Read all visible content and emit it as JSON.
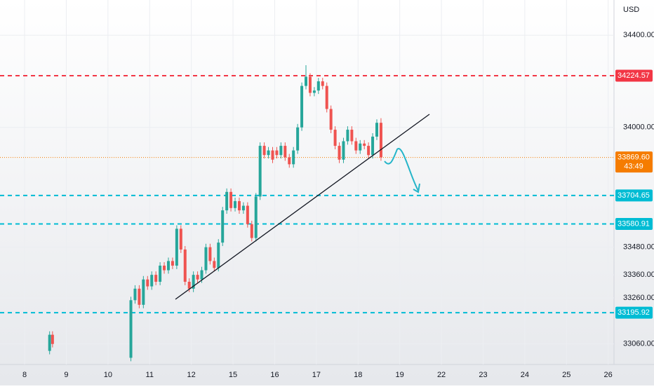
{
  "chart_data": {
    "type": "candlestick",
    "currency": "USD",
    "up_color": "#26a69a",
    "down_color": "#ef5350",
    "xlim": [
      -0.59,
      14.14
    ],
    "xticks": [
      {
        "value": 0,
        "label": "8"
      },
      {
        "value": 1,
        "label": "9"
      },
      {
        "value": 2,
        "label": "10"
      },
      {
        "value": 3,
        "label": "11"
      },
      {
        "value": 4,
        "label": "12"
      },
      {
        "value": 5,
        "label": "15"
      },
      {
        "value": 6,
        "label": "16"
      },
      {
        "value": 7,
        "label": "17"
      },
      {
        "value": 8,
        "label": "18"
      },
      {
        "value": 9,
        "label": "19"
      },
      {
        "value": 10,
        "label": "22"
      },
      {
        "value": 11,
        "label": "23"
      },
      {
        "value": 12,
        "label": "24"
      },
      {
        "value": 13,
        "label": "25"
      },
      {
        "value": 14,
        "label": "26"
      }
    ],
    "ylim": [
      32971,
      34553
    ],
    "yticks": [
      {
        "value": 33060,
        "label": "33060.00"
      },
      {
        "value": 33260,
        "label": "33260.00"
      },
      {
        "value": 33360,
        "label": "33360.00"
      },
      {
        "value": 33480,
        "label": "33480.00"
      },
      {
        "value": 34000,
        "label": "34000.00"
      },
      {
        "value": 34400,
        "label": "34400.00"
      }
    ],
    "grid": true,
    "levels": [
      {
        "value": 34224.57,
        "label": "34224.57",
        "color": "#f23645",
        "style": "dashed"
      },
      {
        "value": 33869.6,
        "label": "33869.60",
        "color": "#f57c00",
        "style": "dotted",
        "countdown": "43:49"
      },
      {
        "value": 33704.65,
        "label": "33704.65",
        "color": "#00bcd4",
        "style": "dashed"
      },
      {
        "value": 33580.91,
        "label": "33580.91",
        "color": "#00bcd4",
        "style": "dashed"
      },
      {
        "value": 33195.92,
        "label": "33195.92",
        "color": "#00bcd4",
        "style": "dashed"
      }
    ],
    "series": [
      {
        "x": [
          0.6,
          0.67,
          2.55,
          2.65,
          2.75,
          2.85,
          2.95,
          3.05,
          3.15,
          3.25,
          3.35,
          3.45,
          3.55,
          3.65,
          3.75,
          3.85,
          3.95,
          4.05,
          4.15,
          4.25,
          4.35,
          4.45,
          4.55,
          4.65,
          4.75,
          4.85,
          4.95,
          5.05,
          5.15,
          5.25,
          5.35,
          5.45,
          5.55,
          5.65,
          5.75,
          5.85,
          5.95,
          6.05,
          6.15,
          6.25,
          6.35,
          6.45,
          6.55,
          6.65,
          6.75,
          6.85,
          6.95,
          7.05,
          7.15,
          7.25,
          7.35,
          7.45,
          7.55,
          7.65,
          7.75,
          7.85,
          7.95,
          8.05,
          8.15,
          8.25,
          8.35,
          8.45,
          8.55
        ],
        "open": [
          33030,
          33100,
          33000,
          33250,
          33300,
          33230,
          33340,
          33310,
          33360,
          33330,
          33400,
          33380,
          33420,
          33400,
          33560,
          33470,
          33330,
          33300,
          33360,
          33340,
          33380,
          33480,
          33420,
          33390,
          33500,
          33640,
          33720,
          33650,
          33680,
          33640,
          33660,
          33580,
          33520,
          33700,
          33920,
          33880,
          33900,
          33900,
          33880,
          33920,
          33870,
          33840,
          33900,
          34000,
          34180,
          34220,
          34150,
          34160,
          34200,
          34180,
          34080,
          33990,
          33920,
          33860,
          33940,
          33990,
          33940,
          33900,
          33930,
          33920,
          33880,
          33960,
          34020
        ],
        "high": [
          33115,
          33115,
          33265,
          33315,
          33315,
          33355,
          33355,
          33375,
          33375,
          33415,
          33415,
          33435,
          33435,
          33575,
          33575,
          33485,
          33345,
          33375,
          33375,
          33395,
          33495,
          33495,
          33435,
          33515,
          33655,
          33735,
          33735,
          33695,
          33695,
          33675,
          33675,
          33595,
          33715,
          33935,
          33935,
          33915,
          33915,
          33915,
          33935,
          33935,
          33885,
          33915,
          34015,
          34195,
          34270,
          34235,
          34175,
          34215,
          34215,
          34195,
          34095,
          34005,
          33935,
          33955,
          34005,
          34005,
          33955,
          33945,
          33945,
          33935,
          33975,
          34035,
          34040
        ],
        "low": [
          33015,
          33045,
          32985,
          33235,
          33215,
          33215,
          33295,
          33295,
          33315,
          33315,
          33365,
          33365,
          33385,
          33385,
          33455,
          33315,
          33285,
          33285,
          33325,
          33325,
          33365,
          33405,
          33375,
          33375,
          33485,
          33625,
          33635,
          33635,
          33625,
          33625,
          33565,
          33505,
          33505,
          33685,
          33865,
          33865,
          33845,
          33865,
          33865,
          33855,
          33825,
          33825,
          33885,
          33985,
          34165,
          34135,
          34135,
          34145,
          34165,
          34065,
          33975,
          33905,
          33845,
          33845,
          33925,
          33925,
          33885,
          33885,
          33905,
          33865,
          33865,
          33945,
          33855
        ],
        "close": [
          33100,
          33060,
          33250,
          33300,
          33230,
          33340,
          33310,
          33360,
          33330,
          33400,
          33380,
          33420,
          33400,
          33560,
          33470,
          33330,
          33300,
          33360,
          33340,
          33380,
          33480,
          33420,
          33390,
          33500,
          33640,
          33720,
          33650,
          33680,
          33640,
          33660,
          33580,
          33520,
          33700,
          33920,
          33880,
          33900,
          33860,
          33880,
          33920,
          33870,
          33840,
          33900,
          34000,
          34180,
          34220,
          34150,
          34160,
          34200,
          34180,
          34080,
          33990,
          33920,
          33860,
          33940,
          33990,
          33940,
          33900,
          33930,
          33920,
          33880,
          33960,
          34020,
          33870
        ]
      }
    ]
  }
}
